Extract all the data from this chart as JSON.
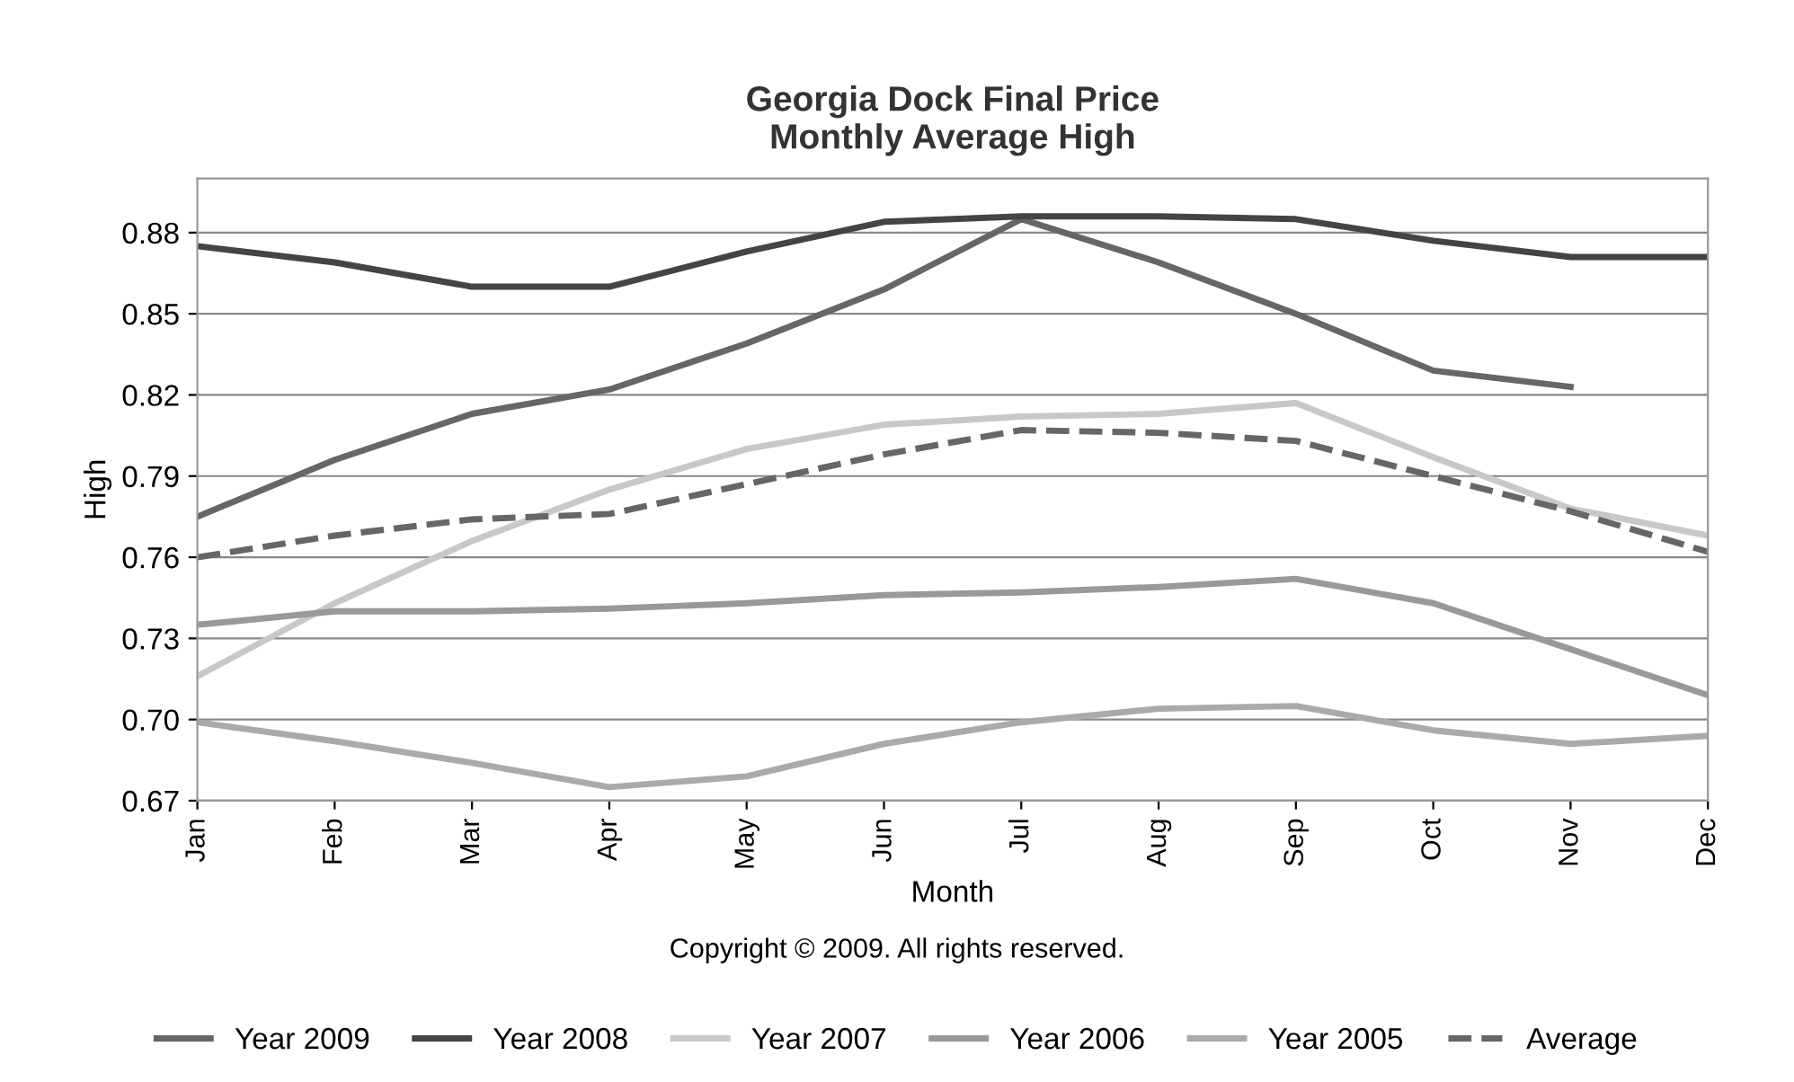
{
  "chart_data": {
    "type": "line",
    "title": "Georgia Dock Final Price\nMonthly Average High",
    "xlabel": "Month",
    "ylabel": "High",
    "annotations": [
      "Copyright © 2009. All rights reserved."
    ],
    "categories": [
      "Jan",
      "Feb",
      "Mar",
      "Apr",
      "May",
      "Jun",
      "Jul",
      "Aug",
      "Sep",
      "Oct",
      "Nov",
      "Dec"
    ],
    "series": [
      {
        "name": "Year 2009",
        "color": "#666666",
        "values": [
          0.775,
          0.796,
          0.813,
          0.822,
          0.839,
          0.859,
          0.885,
          0.869,
          0.85,
          0.829,
          0.823,
          null
        ]
      },
      {
        "name": "Year 2008",
        "color": "#444444",
        "values": [
          0.875,
          0.869,
          0.86,
          0.86,
          0.873,
          0.884,
          0.886,
          0.886,
          0.885,
          0.877,
          0.871,
          0.871
        ]
      },
      {
        "name": "Year 2007",
        "color": "#c8c8c8",
        "values": [
          0.716,
          0.743,
          0.766,
          0.785,
          0.8,
          0.809,
          0.812,
          0.813,
          0.817,
          0.797,
          0.778,
          0.768
        ]
      },
      {
        "name": "Year 2006",
        "color": "#999999",
        "values": [
          0.735,
          0.74,
          0.74,
          0.741,
          0.743,
          0.746,
          0.747,
          0.749,
          0.752,
          0.743,
          0.726,
          0.709
        ]
      },
      {
        "name": "Year 2005",
        "color": "#aaaaaa",
        "values": [
          0.699,
          0.692,
          0.684,
          0.675,
          0.679,
          0.691,
          0.699,
          0.704,
          0.705,
          0.696,
          0.691,
          0.694
        ]
      },
      {
        "name": "Average",
        "color": "#666666",
        "line_style": "dashed",
        "values": [
          0.76,
          0.768,
          0.774,
          0.776,
          0.787,
          0.798,
          0.807,
          0.806,
          0.803,
          0.79,
          0.777,
          0.762
        ]
      }
    ],
    "ylim": [
      0.67,
      0.9
    ],
    "yticks": [
      {
        "value": 0.67,
        "label": "0.67"
      },
      {
        "value": 0.7,
        "label": "0.70"
      },
      {
        "value": 0.73,
        "label": "0.73"
      },
      {
        "value": 0.76,
        "label": "0.76"
      },
      {
        "value": 0.79,
        "label": "0.79"
      },
      {
        "value": 0.82,
        "label": "0.82"
      },
      {
        "value": 0.85,
        "label": "0.85"
      },
      {
        "value": 0.88,
        "label": "0.88"
      }
    ],
    "grid": "y",
    "legend": "bottom",
    "marker": "none",
    "line_style": "solid"
  }
}
